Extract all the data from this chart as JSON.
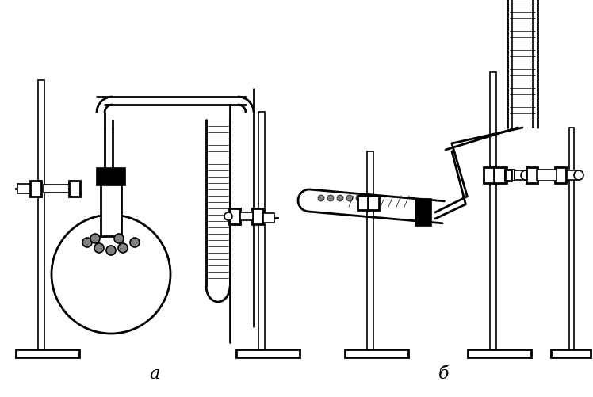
{
  "bg_color": "#ffffff",
  "line_color": "#000000",
  "label_a": "a",
  "label_b": "б",
  "fig_width": 7.48,
  "fig_height": 5.02,
  "dpi": 100
}
